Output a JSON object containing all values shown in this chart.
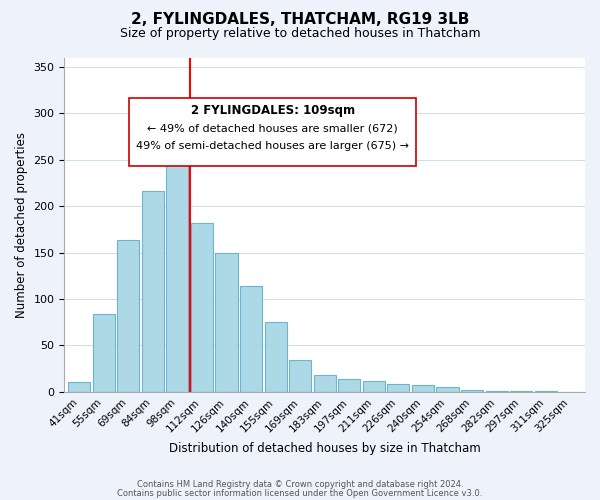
{
  "title": "2, FYLINGDALES, THATCHAM, RG19 3LB",
  "subtitle": "Size of property relative to detached houses in Thatcham",
  "xlabel": "Distribution of detached houses by size in Thatcham",
  "ylabel": "Number of detached properties",
  "bin_labels": [
    "41sqm",
    "55sqm",
    "69sqm",
    "84sqm",
    "98sqm",
    "112sqm",
    "126sqm",
    "140sqm",
    "155sqm",
    "169sqm",
    "183sqm",
    "197sqm",
    "211sqm",
    "226sqm",
    "240sqm",
    "254sqm",
    "268sqm",
    "282sqm",
    "297sqm",
    "311sqm",
    "325sqm"
  ],
  "bar_values": [
    11,
    84,
    164,
    216,
    287,
    182,
    150,
    114,
    75,
    34,
    18,
    14,
    12,
    9,
    8,
    5,
    2,
    1,
    1,
    1,
    0
  ],
  "bar_color": "#add8e6",
  "bar_edge_color": "#6db3d4",
  "vline_pos": 4.5,
  "vline_color": "red",
  "ylim": [
    0,
    360
  ],
  "yticks": [
    0,
    50,
    100,
    150,
    200,
    250,
    300,
    350
  ],
  "annotation_title": "2 FYLINGDALES: 109sqm",
  "annotation_line1": "← 49% of detached houses are smaller (672)",
  "annotation_line2": "49% of semi-detached houses are larger (675) →",
  "footer_line1": "Contains HM Land Registry data © Crown copyright and database right 2024.",
  "footer_line2": "Contains public sector information licensed under the Open Government Licence v3.0.",
  "background_color": "#eef2fa",
  "plot_background_color": "#ffffff"
}
